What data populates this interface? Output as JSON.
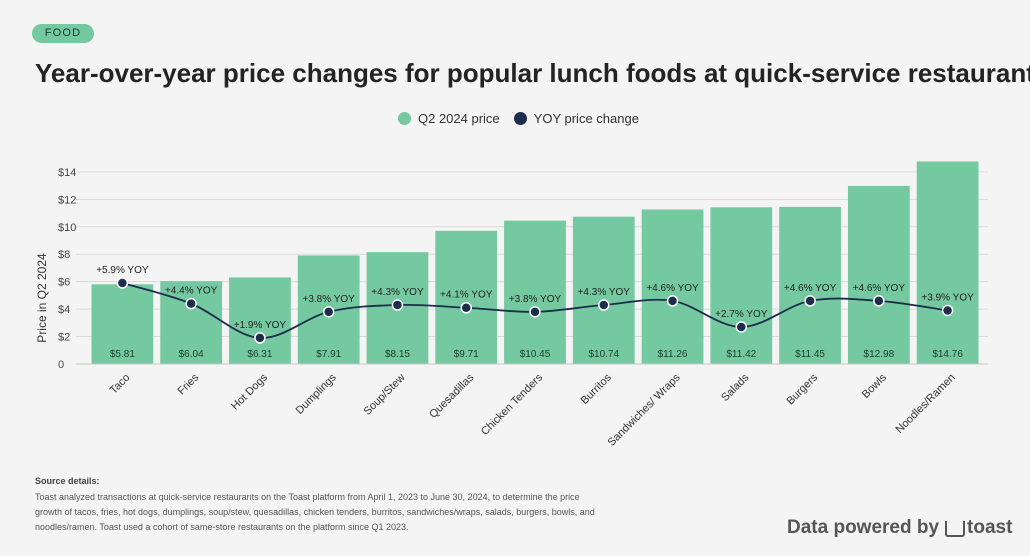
{
  "tag": "FOOD",
  "title": "Year-over-year price changes for popular lunch foods at quick-service restaurants",
  "legend": [
    {
      "label": "Q2 2024 price",
      "color": "#74c9a0"
    },
    {
      "label": "YOY price change",
      "color": "#1d2d4c"
    }
  ],
  "chart_data": {
    "type": "bar",
    "categories": [
      "Taco",
      "Fries",
      "Hot Dogs",
      "Dumplings",
      "Soup/Stew",
      "Quesadillas",
      "Chicken Tenders",
      "Burritos",
      "Sandwiches/ Wraps",
      "Salads",
      "Burgers",
      "Bowls",
      "Noodles/Ramen"
    ],
    "series": [
      {
        "name": "Q2 2024 price",
        "type": "bar",
        "color": "#74c9a0",
        "values": [
          5.81,
          6.04,
          6.31,
          7.91,
          8.15,
          9.71,
          10.45,
          10.74,
          11.26,
          11.42,
          11.45,
          12.98,
          14.76
        ],
        "labels": [
          "$5.81",
          "$6.04",
          "$6.31",
          "$7.91",
          "$8.15",
          "$9.71",
          "$10.45",
          "$10.74",
          "$11.26",
          "$11.42",
          "$11.45",
          "$12.98",
          "$14.76"
        ]
      },
      {
        "name": "YOY price change",
        "type": "line",
        "color": "#1d2d4c",
        "values": [
          5.9,
          4.4,
          1.9,
          3.8,
          4.3,
          4.1,
          3.8,
          4.3,
          4.6,
          2.7,
          4.6,
          4.6,
          3.9
        ],
        "labels": [
          "+5.9% YOY",
          "+4.4% YOY",
          "+1.9% YOY",
          "+3.8% YOY",
          "+4.3% YOY",
          "+4.1% YOY",
          "+3.8% YOY",
          "+4.3% YOY",
          "+4.6% YOY",
          "+2.7% YOY",
          "+4.6% YOY",
          "+4.6% YOY",
          "+3.9% YOY"
        ]
      }
    ],
    "ylabel": "Price in Q2 2024",
    "ylim": [
      0,
      15.5
    ],
    "yticks": [
      "0",
      "$2",
      "$4",
      "$6",
      "$8",
      "$10",
      "$12",
      "$14"
    ],
    "grid": true,
    "legend_position": "top-center"
  },
  "source": {
    "heading": "Source details:",
    "text": "Toast analyzed transactions at quick-service restaurants on the Toast platform from April 1, 2023 to June 30, 2024, to determine the price growth of tacos, fries, hot dogs, dumplings, soup/stew, quesadillas, chicken tenders, burritos, sandwiches/wraps, salads, burgers, bowls, and noodles/ramen. Toast used a cohort of same-store restaurants on the platform since Q1 2023."
  },
  "footer": {
    "prefix": "Data powered by",
    "brand": "toast"
  }
}
